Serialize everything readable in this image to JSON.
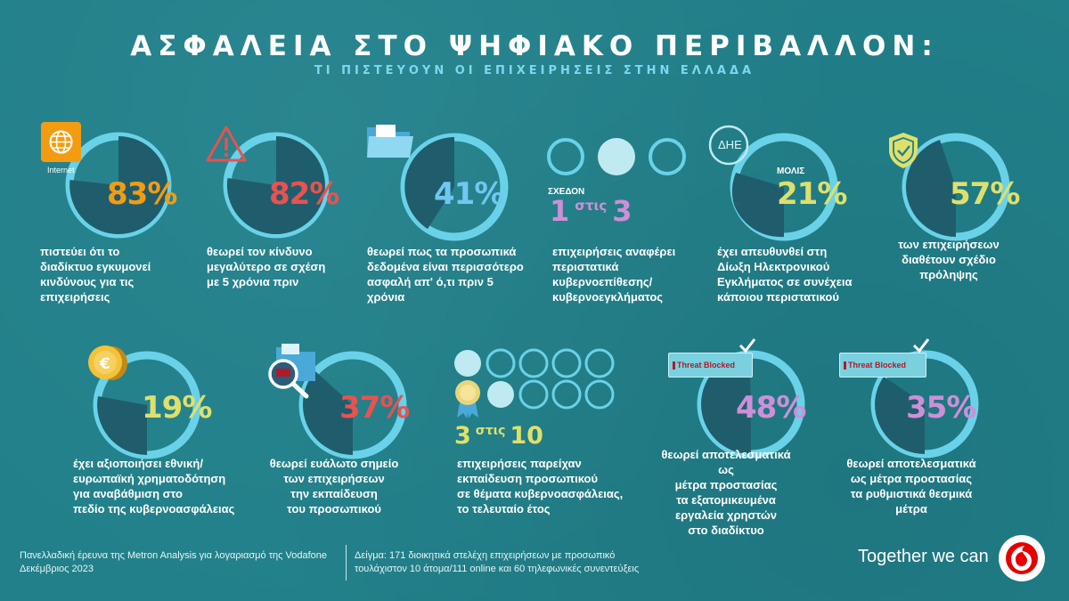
{
  "header": {
    "title": "ΑΣΦΑΛΕΙΑ ΣΤΟ ΨΗΦΙΑΚΟ ΠΕΡΙΒΑΛΛΟΝ:",
    "subtitle": "ΤΙ ΠΙΣΤΕΥΟΥΝ ΟΙ ΕΠΙΧΕΙΡΗΣΕΙΣ ΣΤΗΝ ΕΛΛΑΔΑ"
  },
  "colors": {
    "background": "#21808a",
    "ring_light": "#6ad2e8",
    "ring_dark": "#1f5d6c",
    "orange": "#f39c12",
    "red": "#e8524f",
    "blue": "#6fc8f0",
    "yellow": "#dfe06a",
    "purple": "#cf8fd8"
  },
  "stats": [
    {
      "id": "internet",
      "value": "83%",
      "fraction": 0.83,
      "icon_label": "Internet",
      "text": [
        "πιστεύει ότι το",
        "διαδίκτυο εγκυμονεί",
        "κινδύνους για τις",
        "επιχειρήσεις"
      ]
    },
    {
      "id": "risk",
      "value": "82%",
      "fraction": 0.82,
      "text": [
        "θεωρεί τον κίνδυνο",
        "μεγαλύτερο σε σχέση",
        "με 5 χρόνια πριν"
      ]
    },
    {
      "id": "data",
      "value": "41%",
      "fraction": 0.41,
      "text": [
        "θεωρεί πως τα προσωπικά",
        "δεδομένα είναι περισσότερο",
        "ασφαλή απ' ό,τι πριν 5",
        "χρόνια"
      ]
    },
    {
      "id": "incidents",
      "prefix": "ΣΧΕΔΟΝ",
      "num": "1",
      "mid": "στις",
      "den": "3",
      "text": [
        "επιχειρήσεις αναφέρει",
        "περιστατικά",
        "κυβερνοεπίθεσης/",
        "κυβερνοεγκλήματος"
      ]
    },
    {
      "id": "police",
      "value": "21%",
      "fraction": 0.21,
      "prefix": "ΜΟΛΙΣ",
      "icon_label": "ΔΗΕ",
      "text": [
        "έχει απευθυνθεί στη",
        "Δίωξη Ηλεκτρονικού",
        "Εγκλήματος σε συνέχεια",
        "κάποιου περιστατικού"
      ]
    },
    {
      "id": "plan",
      "value": "57%",
      "fraction": 0.57,
      "text": [
        "των επιχειρήσεων",
        "διαθέτουν σχέδιο",
        "πρόληψης"
      ]
    },
    {
      "id": "funding",
      "value": "19%",
      "fraction": 0.19,
      "text": [
        "έχει αξιοποιήσει εθνική/",
        "ευρωπαϊκή χρηματοδότηση",
        "για αναβάθμιση στο",
        "πεδίο της κυβερνοασφάλειας"
      ]
    },
    {
      "id": "training_weak",
      "value": "37%",
      "fraction": 0.37,
      "text": [
        "θεωρεί ευάλωτο σημείο",
        "των επιχειρήσεων",
        "την εκπαίδευση",
        "του προσωπικού"
      ]
    },
    {
      "id": "training",
      "num": "3",
      "mid": "στις",
      "den": "10",
      "text": [
        "επιχειρήσεις παρείχαν",
        "εκπαίδευση προσωπικού",
        "σε θέματα κυβερνοασφάλειας,",
        "το τελευταίο έτος"
      ]
    },
    {
      "id": "tools",
      "value": "48%",
      "fraction": 0.48,
      "badge": "Threat Blocked",
      "text": [
        "θεωρεί αποτελεσματικά ως",
        "μέτρα προστασίας",
        "τα εξατομικευμένα",
        "εργαλεία χρηστών",
        "στο διαδίκτυο"
      ]
    },
    {
      "id": "regulation",
      "value": "35%",
      "fraction": 0.35,
      "badge": "Threat Blocked",
      "text": [
        "θεωρεί αποτελεσματικά",
        "ως μέτρα προστασίας",
        "τα ρυθμιστικά θεσμικά",
        "μέτρα"
      ]
    }
  ],
  "footer": {
    "left": [
      "Πανελλαδική έρευνα της Metron Analysis για λογαριασμό της Vodafone",
      "Δεκέμβριος 2023"
    ],
    "right": [
      "Δείγμα: 171 διοικητικά στελέχη επιχειρήσεων με προσωπικό",
      "τουλάχιστον 10 άτομα/111 online και 60 τηλεφωνικές συνεντεύξεις"
    ],
    "brand": "Together we can"
  }
}
